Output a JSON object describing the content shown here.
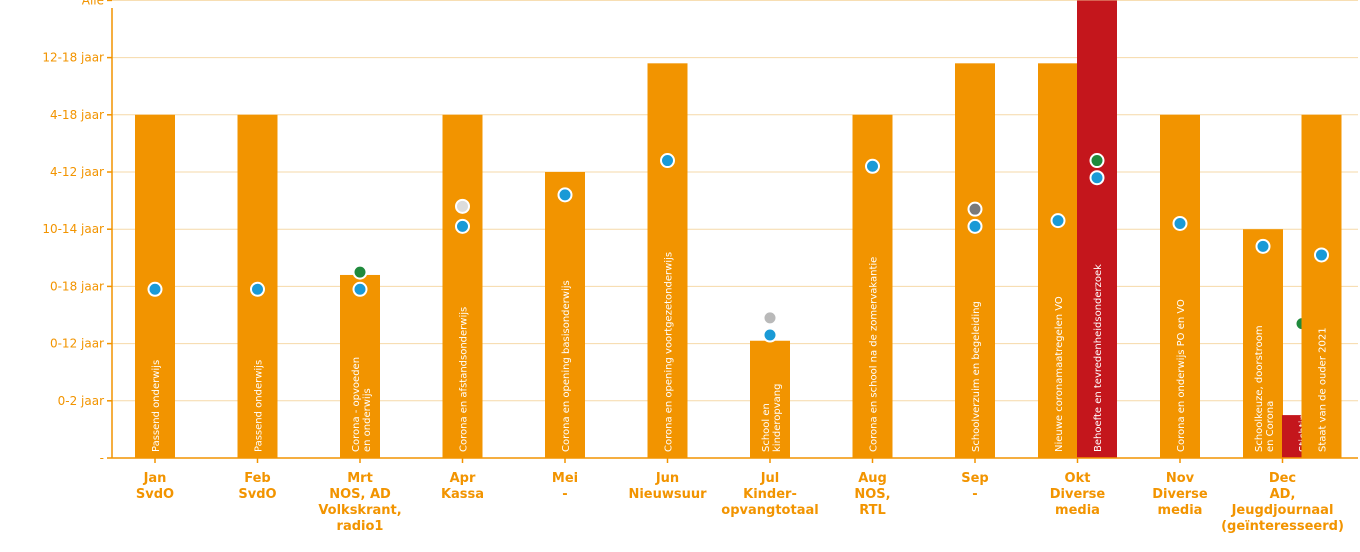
{
  "colors": {
    "orange": "#f29400",
    "red": "#c4161c",
    "dot_blue": "#1a9ad6",
    "dot_green": "#1f8a3c",
    "dot_grey": "#b9b9b9",
    "dot_lightgrey": "#dcdcdc",
    "dot_darkgrey": "#7a7a7a"
  },
  "chart_data": {
    "type": "bar",
    "title": "",
    "xlabel": "",
    "ylabel": "",
    "y_categories": [
      "-",
      "0-2 jaar",
      "0-12 jaar",
      "0-18 jaar",
      "10-14 jaar",
      "4-12 jaar",
      "4-18 jaar",
      "12-18 jaar",
      "Alle"
    ],
    "months": [
      {
        "label": "Jan",
        "source": "SvdO"
      },
      {
        "label": "Feb",
        "source": "SvdO"
      },
      {
        "label": "Mrt",
        "source": "NOS, AD\nVolkskrant,\nradio1"
      },
      {
        "label": "Apr",
        "source": "Kassa"
      },
      {
        "label": "Mei",
        "source": "-"
      },
      {
        "label": "Jun",
        "source": "Nieuwsuur"
      },
      {
        "label": "Jul",
        "source": "Kinder-\nopvangtotaal"
      },
      {
        "label": "Aug",
        "source": "NOS,\nRTL"
      },
      {
        "label": "Sep",
        "source": "-"
      },
      {
        "label": "Okt",
        "source": "Diverse\nmedia"
      },
      {
        "label": "Nov",
        "source": "Diverse\nmedia"
      },
      {
        "label": "Dec",
        "source": "AD,\nJeugdjournaal\n(geïnteresseerd)"
      }
    ],
    "bars": [
      {
        "month": 0,
        "offset": 0,
        "value": 6,
        "color": "orange",
        "text": "Passend onderwijs",
        "dots": [
          {
            "value": 2.95,
            "color": "dot_blue"
          }
        ]
      },
      {
        "month": 1,
        "offset": 0,
        "value": 6,
        "color": "orange",
        "text": "Passend onderwijs",
        "dots": [
          {
            "value": 2.95,
            "color": "dot_blue"
          }
        ]
      },
      {
        "month": 2,
        "offset": 0,
        "value": 3.2,
        "color": "orange",
        "text": "Corona - opvoeden\nen onderwijs",
        "dots": [
          {
            "value": 3.25,
            "color": "dot_green"
          },
          {
            "value": 2.95,
            "color": "dot_blue"
          }
        ]
      },
      {
        "month": 3,
        "offset": 0,
        "value": 6,
        "color": "orange",
        "text": "Corona en afstandsonderwijs",
        "dots": [
          {
            "value": 4.4,
            "color": "dot_lightgrey"
          },
          {
            "value": 4.05,
            "color": "dot_blue"
          }
        ]
      },
      {
        "month": 4,
        "offset": 0,
        "value": 5,
        "color": "orange",
        "text": "Corona en opening basisonderwijs",
        "dots": [
          {
            "value": 4.6,
            "color": "dot_blue"
          }
        ]
      },
      {
        "month": 5,
        "offset": 0,
        "value": 6.9,
        "color": "orange",
        "text": "Corona en opening voortgezetonderwijs",
        "dots": [
          {
            "value": 5.2,
            "color": "dot_blue"
          }
        ]
      },
      {
        "month": 6,
        "offset": 0,
        "value": 2.05,
        "color": "orange",
        "text": "School en\nkinderopvang",
        "dots": [
          {
            "value": 2.45,
            "color": "dot_grey"
          },
          {
            "value": 2.15,
            "color": "dot_blue"
          }
        ]
      },
      {
        "month": 7,
        "offset": 0,
        "value": 6,
        "color": "orange",
        "text": "Corona en school na de zomervakantie",
        "dots": [
          {
            "value": 5.1,
            "color": "dot_blue"
          }
        ]
      },
      {
        "month": 8,
        "offset": 0,
        "value": 6.9,
        "color": "orange",
        "text": "Schoolverzuim en begeleiding",
        "dots": [
          {
            "value": 4.35,
            "color": "dot_darkgrey"
          },
          {
            "value": 4.05,
            "color": "dot_blue"
          }
        ]
      },
      {
        "month": 9,
        "offset": -1,
        "value": 6.9,
        "color": "orange",
        "text": "Nieuwe coronamaatregelen VO",
        "dots": [
          {
            "value": 4.15,
            "color": "dot_blue"
          }
        ]
      },
      {
        "month": 9,
        "offset": 1,
        "value": 8,
        "color": "red",
        "text": "Behoefte en tevredenheidsonderzoek",
        "dots": [
          {
            "value": 5.2,
            "color": "dot_green"
          },
          {
            "value": 4.9,
            "color": "dot_blue"
          }
        ]
      },
      {
        "month": 10,
        "offset": 0,
        "value": 6,
        "color": "orange",
        "text": "Corona en onderwijs PO en VO",
        "dots": [
          {
            "value": 4.1,
            "color": "dot_blue"
          }
        ]
      },
      {
        "month": 11,
        "offset": -1,
        "value": 4,
        "color": "orange",
        "text": "Schoolkeuze, doorstroom\nen Corona",
        "dots": [
          {
            "value": 3.7,
            "color": "dot_blue"
          }
        ]
      },
      {
        "month": 11,
        "offset": 1,
        "value": 0.75,
        "color": "red",
        "text": "Stichting",
        "dots": [
          {
            "value": 2.35,
            "color": "dot_green"
          }
        ]
      },
      {
        "month": 11,
        "offset": 2,
        "value": 6,
        "color": "orange",
        "text": "Staat van de ouder 2021",
        "dots": [
          {
            "value": 3.55,
            "color": "dot_blue"
          }
        ]
      }
    ]
  }
}
